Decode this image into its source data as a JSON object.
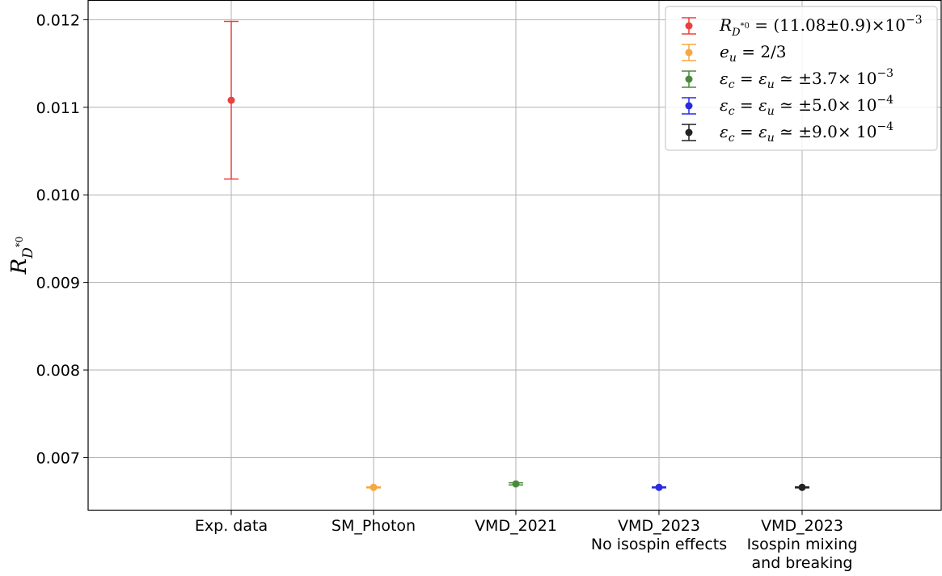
{
  "chart_data": {
    "type": "scatter",
    "error_bars": true,
    "title": "",
    "xlabel": "",
    "ylabel": "R_{D*0}",
    "ylim": [
      0.0064,
      0.01222
    ],
    "y_ticks": [
      "0.007",
      "0.008",
      "0.009",
      "0.010",
      "0.011",
      "0.012"
    ],
    "grid": true,
    "legend_position": "top-right",
    "categories": [
      {
        "lines": [
          "Exp. data"
        ]
      },
      {
        "lines": [
          "SM_Photon"
        ]
      },
      {
        "lines": [
          "VMD_2021"
        ]
      },
      {
        "lines": [
          "VMD_2023",
          "No isospin effects"
        ]
      },
      {
        "lines": [
          "VMD_2023",
          "Isospin mixing",
          "and breaking"
        ]
      }
    ],
    "series": [
      {
        "name": "R_{D*0} = (11.08±0.9)×10^-3",
        "category_index": 0,
        "value": 0.01108,
        "error": 0.0009,
        "color": "#e8413f"
      },
      {
        "name": "e_u = 2/3",
        "category_index": 1,
        "value": 0.00666,
        "error": 5e-06,
        "color": "#f5a842"
      },
      {
        "name": "ε_c = ε_u ≃ ±3.7× 10^-3",
        "category_index": 2,
        "value": 0.0067,
        "error": 1.2e-05,
        "color": "#4a8a3a"
      },
      {
        "name": "ε_c = ε_u ≃ ±5.0× 10^-4",
        "category_index": 3,
        "value": 0.00666,
        "error": 5e-06,
        "color": "#2a2ae0"
      },
      {
        "name": "ε_c = ε_u ≃ ±9.0× 10^-4",
        "category_index": 4,
        "value": 0.00666,
        "error": 5e-06,
        "color": "#222222"
      }
    ]
  }
}
